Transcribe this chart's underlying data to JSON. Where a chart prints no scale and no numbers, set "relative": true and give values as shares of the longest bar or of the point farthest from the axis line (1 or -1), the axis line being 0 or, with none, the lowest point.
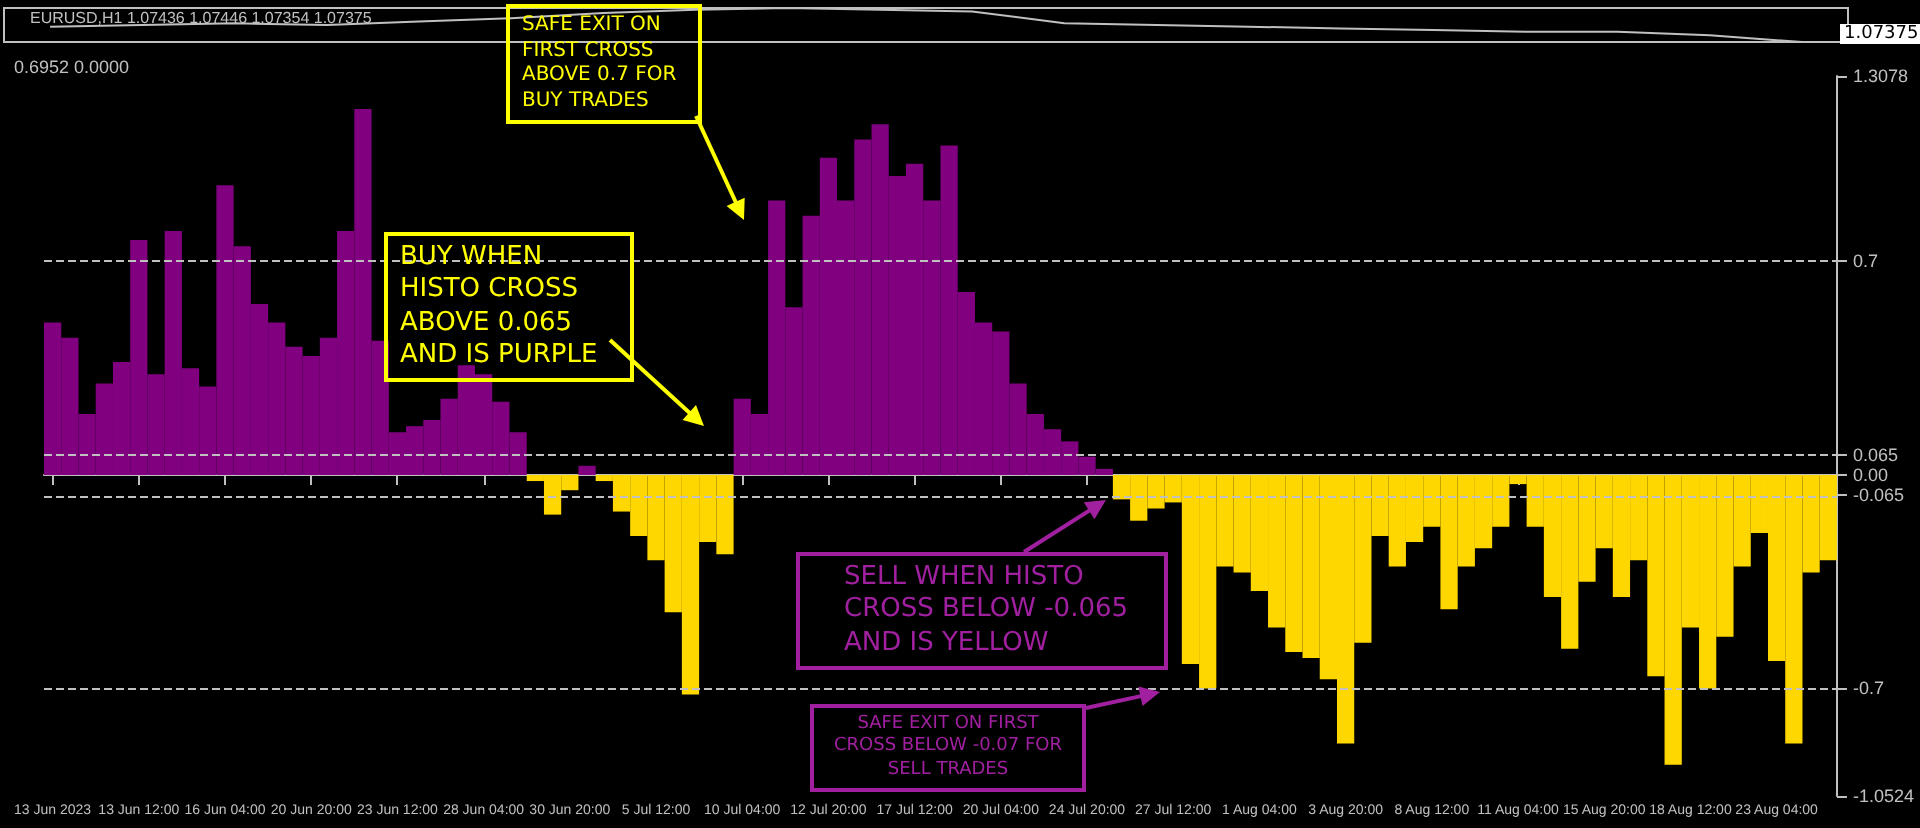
{
  "chart_data": [
    {
      "type": "line",
      "title": "EURUSD,H1 1.07436 1.07446 1.07354 1.07375",
      "relative": true,
      "marker": "none",
      "color": "#c0c0c0",
      "categories": [
        null,
        null,
        null,
        null,
        null,
        null,
        null,
        null,
        null,
        null,
        null,
        null,
        null,
        null,
        null,
        null,
        null,
        null,
        null,
        null
      ],
      "values": [
        0.45,
        0.5,
        0.55,
        0.5,
        0.6,
        0.7,
        0.85,
        0.95,
        1,
        0.95,
        0.9,
        0.55,
        0.5,
        0.45,
        0.4,
        0.35,
        0.3,
        0.3,
        0.2,
        0
      ],
      "annotations": [
        "1.07375"
      ]
    },
    {
      "type": "bar",
      "title": "0.6952 0.0000",
      "categories": [
        "13 Jun 2023",
        null,
        null,
        null,
        null,
        "13 Jun 12:00",
        null,
        null,
        null,
        null,
        "16 Jun 04:00",
        null,
        null,
        null,
        null,
        "20 Jun 20:00",
        null,
        null,
        null,
        null,
        "23 Jun 12:00",
        null,
        null,
        null,
        null,
        "28 Jun 04:00",
        null,
        null,
        null,
        null,
        "30 Jun 20:00",
        null,
        null,
        null,
        null,
        "5 Jul 12:00",
        null,
        null,
        null,
        null,
        "10 Jul 04:00",
        null,
        null,
        null,
        null,
        "12 Jul 20:00",
        null,
        null,
        null,
        null,
        "17 Jul 12:00",
        null,
        null,
        null,
        null,
        "20 Jul 04:00",
        null,
        null,
        null,
        null,
        "24 Jul 20:00",
        null,
        null,
        null,
        null,
        "27 Jul 12:00",
        null,
        null,
        null,
        null,
        "1 Aug 04:00",
        null,
        null,
        null,
        null,
        "3 Aug 20:00",
        null,
        null,
        null,
        null,
        "8 Aug 12:00",
        null,
        null,
        null,
        null,
        "11 Aug 04:00",
        null,
        null,
        null,
        null,
        "15 Aug 20:00",
        null,
        null,
        null,
        null,
        "18 Aug 12:00",
        null,
        null,
        null,
        null,
        "23 Aug 04:00",
        null,
        null,
        null
      ],
      "values": [
        0.5,
        0.45,
        0.2,
        0.3,
        0.37,
        0.77,
        0.33,
        0.8,
        0.35,
        0.29,
        0.95,
        0.75,
        0.56,
        0.5,
        0.42,
        0.39,
        0.45,
        0.8,
        1.2,
        0.44,
        0.14,
        0.16,
        0.18,
        0.25,
        0.36,
        0.33,
        0.24,
        0.14,
        -0.02,
        -0.13,
        -0.05,
        0.03,
        -0.02,
        -0.12,
        -0.2,
        -0.28,
        -0.45,
        -0.72,
        -0.22,
        -0.26,
        0.25,
        0.2,
        0.9,
        0.55,
        0.85,
        1.04,
        0.9,
        1.1,
        1.15,
        0.98,
        1.02,
        0.9,
        1.08,
        0.6,
        0.5,
        0.47,
        0.3,
        0.2,
        0.15,
        0.11,
        0.06,
        0.02,
        -0.08,
        -0.15,
        -0.11,
        -0.09,
        -0.62,
        -0.7,
        -0.3,
        -0.32,
        -0.38,
        -0.5,
        -0.58,
        -0.6,
        -0.67,
        -0.88,
        -0.55,
        -0.2,
        -0.3,
        -0.22,
        -0.17,
        -0.44,
        -0.3,
        -0.24,
        -0.17,
        -0.03,
        -0.17,
        -0.4,
        -0.57,
        -0.35,
        -0.24,
        -0.4,
        -0.28,
        -0.66,
        -0.95,
        -0.5,
        -0.7,
        -0.53,
        -0.3,
        -0.19,
        -0.61,
        -0.88,
        -0.32,
        -0.28
      ],
      "colors": [
        "#800080",
        "#800080",
        "#800080",
        "#800080",
        "#800080",
        "#800080",
        "#800080",
        "#800080",
        "#800080",
        "#800080",
        "#800080",
        "#800080",
        "#800080",
        "#800080",
        "#800080",
        "#800080",
        "#800080",
        "#800080",
        "#800080",
        "#800080",
        "#800080",
        "#800080",
        "#800080",
        "#800080",
        "#800080",
        "#800080",
        "#800080",
        "#800080",
        "#ffd700",
        "#ffd700",
        "#ffd700",
        "#800080",
        "#ffd700",
        "#ffd700",
        "#ffd700",
        "#ffd700",
        "#ffd700",
        "#ffd700",
        "#ffd700",
        "#ffd700",
        "#800080",
        "#800080",
        "#800080",
        "#800080",
        "#800080",
        "#800080",
        "#800080",
        "#800080",
        "#800080",
        "#800080",
        "#800080",
        "#800080",
        "#800080",
        "#800080",
        "#800080",
        "#800080",
        "#800080",
        "#800080",
        "#800080",
        "#800080",
        "#800080",
        "#800080",
        "#ffd700",
        "#ffd700",
        "#ffd700",
        "#ffd700",
        "#ffd700",
        "#ffd700",
        "#ffd700",
        "#ffd700",
        "#ffd700",
        "#ffd700",
        "#ffd700",
        "#ffd700",
        "#ffd700",
        "#ffd700",
        "#ffd700",
        "#ffd700",
        "#ffd700",
        "#ffd700",
        "#ffd700",
        "#ffd700",
        "#ffd700",
        "#ffd700",
        "#ffd700",
        "#ffd700",
        "#ffd700",
        "#ffd700",
        "#ffd700",
        "#ffd700",
        "#ffd700",
        "#ffd700",
        "#ffd700",
        "#ffd700",
        "#ffd700",
        "#ffd700",
        "#ffd700",
        "#ffd700",
        "#ffd700",
        "#ffd700",
        "#ffd700",
        "#ffd700",
        "#ffd700",
        "#ffd700"
      ],
      "ylim": [
        -1.0524,
        1.3078
      ],
      "yticks": [
        1.3078,
        0.7,
        0.065,
        {
          "value": 0,
          "label": "0.00"
        },
        -0.065,
        -0.7,
        -1.0524
      ],
      "ref_lines": [
        {
          "axis": "y",
          "value": 0.7,
          "color": "#c0c0c0",
          "line_style": "dashed"
        },
        {
          "axis": "y",
          "value": 0.065,
          "color": "#c0c0c0",
          "line_style": "dashed"
        },
        {
          "axis": "y",
          "value": -0.065,
          "color": "#c0c0c0",
          "line_style": "dashed"
        },
        {
          "axis": "y",
          "value": -0.7,
          "color": "#c0c0c0",
          "line_style": "dashed"
        }
      ],
      "annotations": [
        "SAFE EXIT ON FIRST CROSS ABOVE 0.7 FOR BUY TRADES",
        "BUY WHEN HISTO CROSS ABOVE 0.065 AND IS PURPLE",
        "SELL WHEN HISTO CROSS BELOW -0.065 AND IS YELLOW",
        "SAFE EXIT ON FIRST CROSS BELOW -0.07 FOR SELL TRADES"
      ]
    }
  ]
}
